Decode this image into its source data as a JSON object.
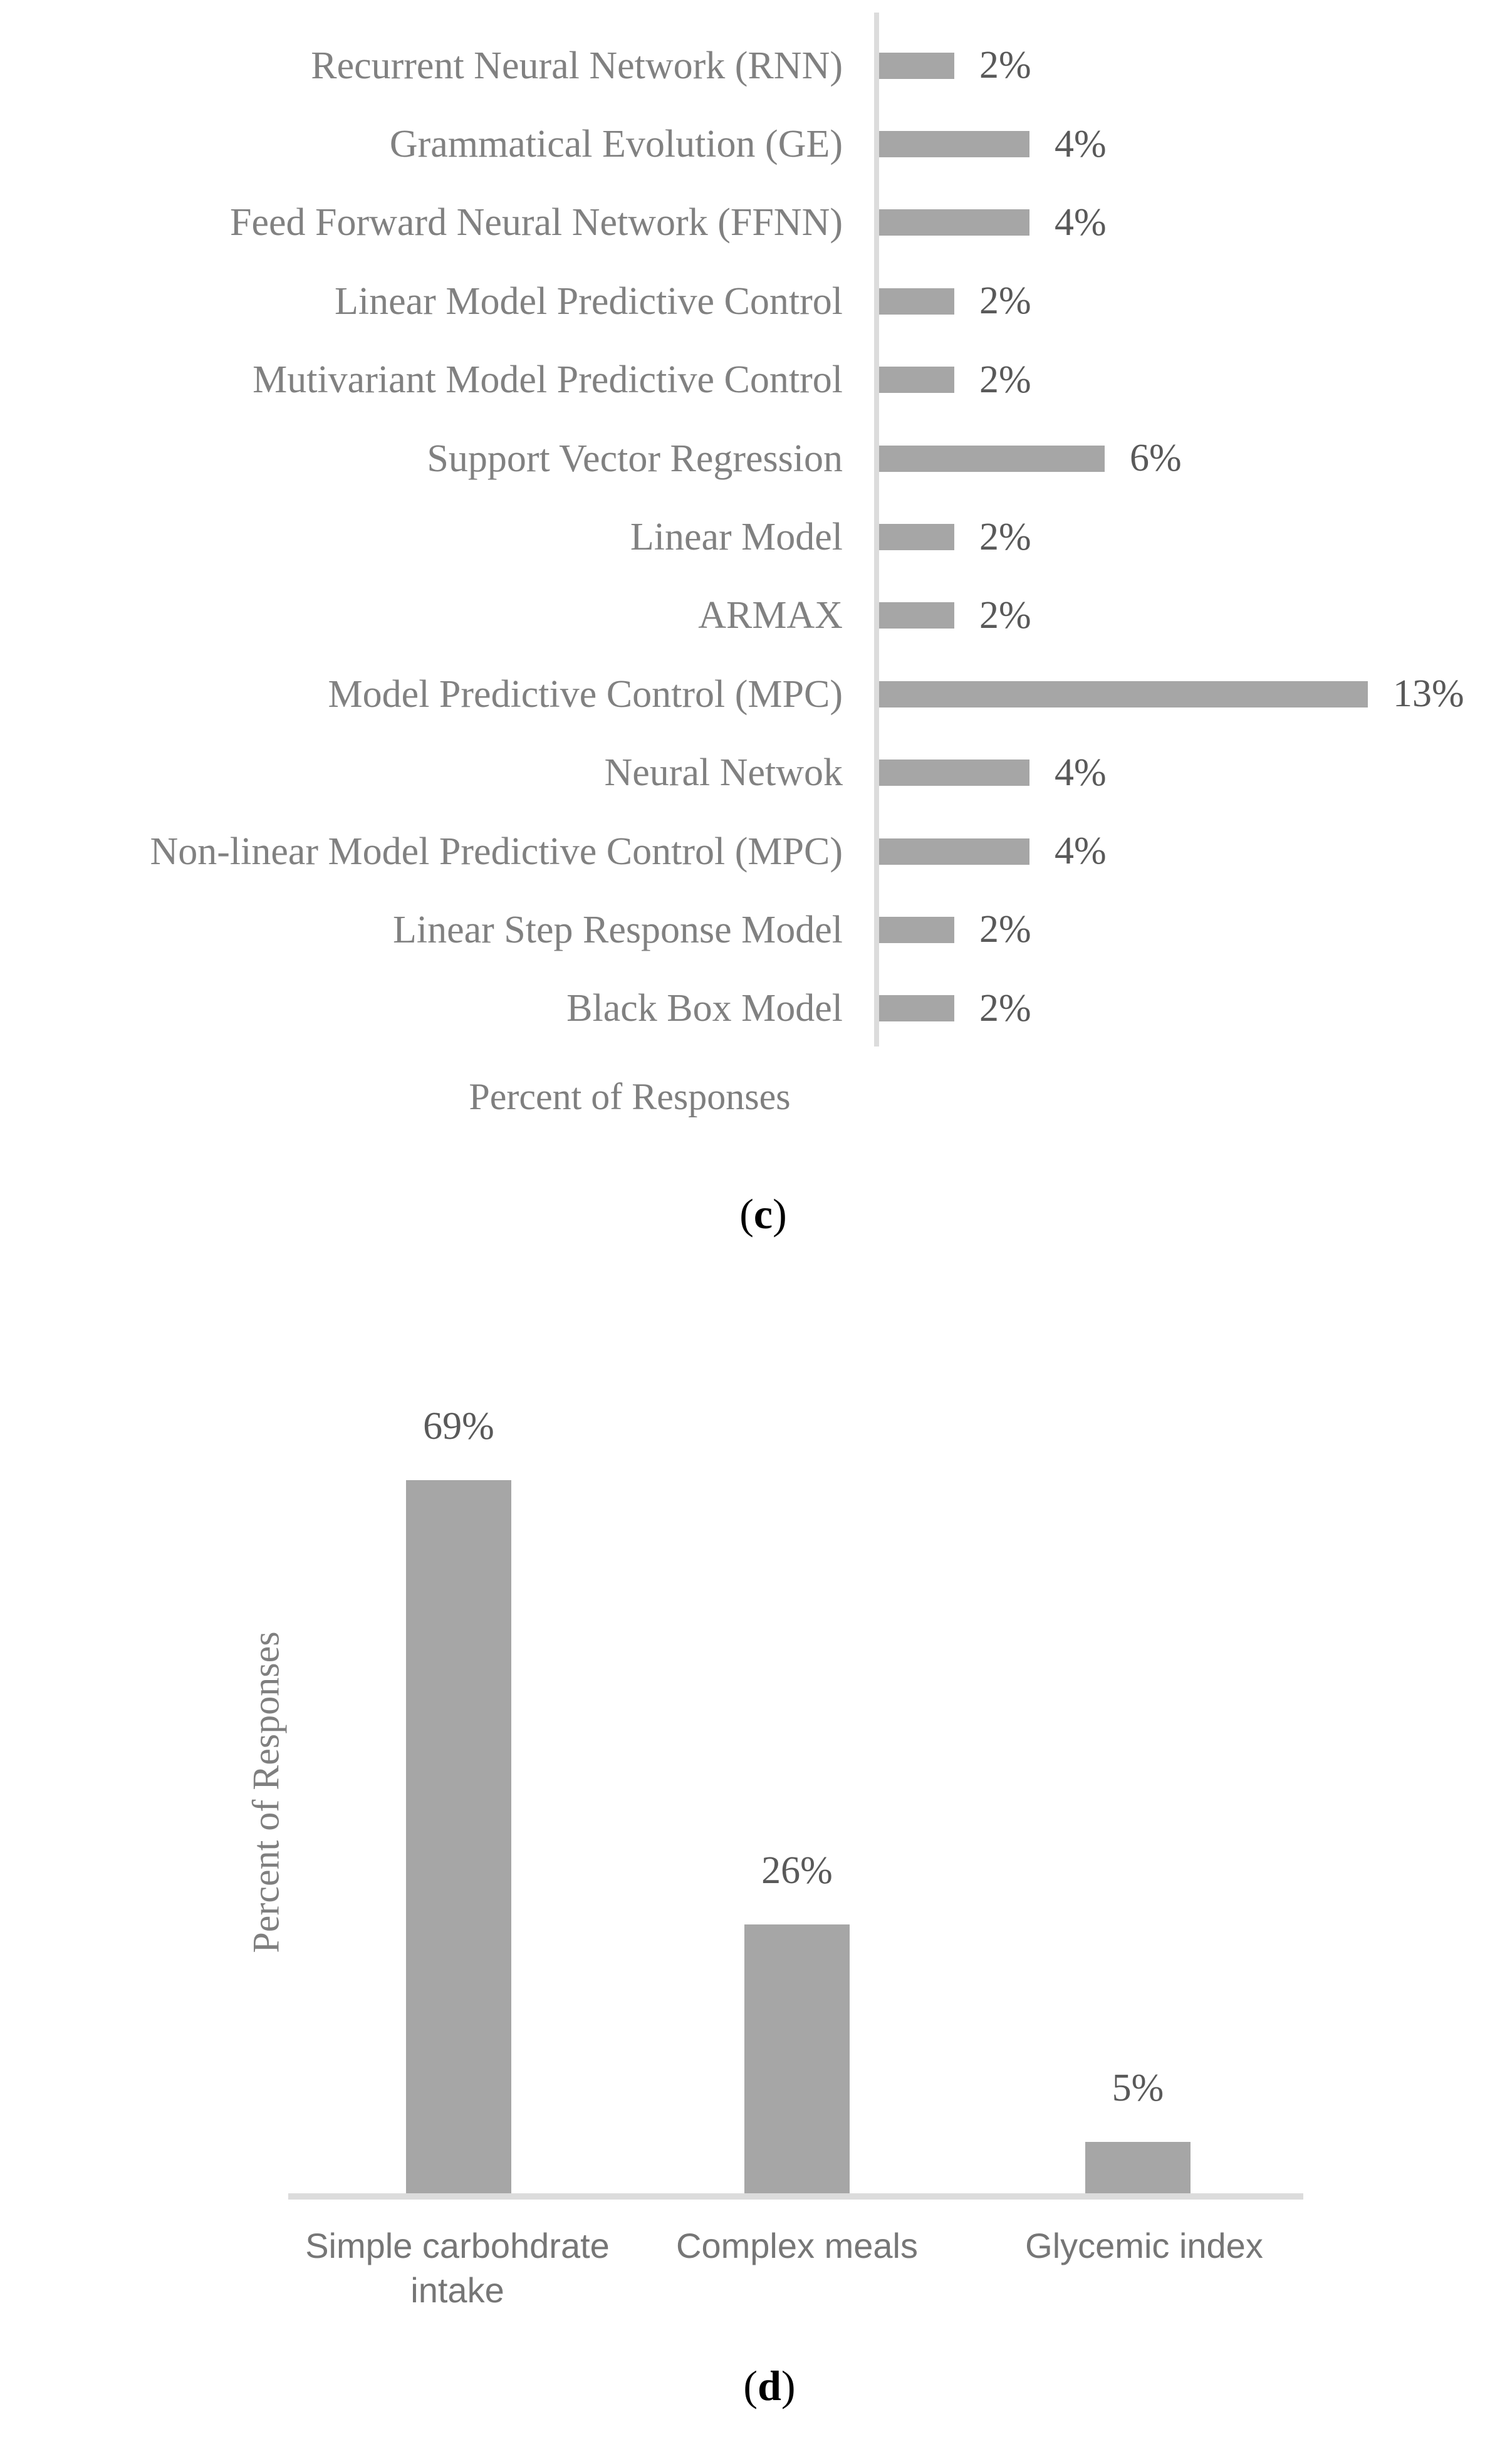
{
  "colors": {
    "bar": "#a6a6a6",
    "axis_line": "#dcdcdc",
    "category_text": "#818181",
    "value_text": "#595959",
    "axis_title_text": "#7f7f7f",
    "caption_text": "#000000",
    "background": "#ffffff"
  },
  "chart_data": [
    {
      "id": "c",
      "type": "bar",
      "orientation": "horizontal",
      "title": "",
      "xlabel": "Percent of Responses",
      "grid": false,
      "xlim": [
        0,
        14
      ],
      "categories": [
        "Recurrent Neural Network (RNN)",
        "Grammatical Evolution (GE)",
        "Feed Forward Neural Network (FFNN)",
        "Linear Model Predictive Control",
        "Mutivariant Model Predictive Control",
        "Support Vector Regression",
        "Linear Model",
        "ARMAX",
        "Model Predictive Control (MPC)",
        "Neural Netwok",
        "Non-linear Model Predictive Control (MPC)",
        "Linear Step Response Model",
        "Black Box Model"
      ],
      "values": [
        2,
        4,
        4,
        2,
        2,
        6,
        2,
        2,
        13,
        4,
        4,
        2,
        2
      ],
      "value_labels": [
        "2%",
        "4%",
        "4%",
        "2%",
        "2%",
        "6%",
        "2%",
        "2%",
        "13%",
        "4%",
        "4%",
        "2%",
        "2%"
      ],
      "caption": {
        "open": "(",
        "letter": "c",
        "close": ")"
      }
    },
    {
      "id": "d",
      "type": "bar",
      "orientation": "vertical",
      "title": "",
      "ylabel": "Percent of Responses",
      "grid": false,
      "ylim": [
        0,
        70
      ],
      "categories": [
        "Simple carbohdrate intake",
        "Complex meals",
        "Glycemic index"
      ],
      "values": [
        69,
        26,
        5
      ],
      "value_labels": [
        "69%",
        "26%",
        "5%"
      ],
      "caption": {
        "open": "(",
        "letter": "d",
        "close": ")"
      }
    }
  ]
}
